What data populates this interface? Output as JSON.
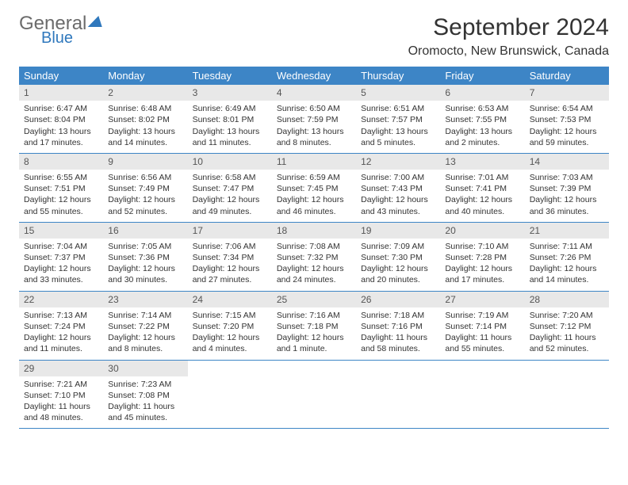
{
  "logo": {
    "line1": "General",
    "line2": "Blue"
  },
  "title": "September 2024",
  "location": "Oromocto, New Brunswick, Canada",
  "colors": {
    "header_bg": "#3d85c6",
    "header_text": "#ffffff",
    "daynum_bg": "#e8e8e8",
    "logo_gray": "#6b6b6b",
    "logo_blue": "#2f78bd",
    "row_border": "#3d85c6"
  },
  "day_names": [
    "Sunday",
    "Monday",
    "Tuesday",
    "Wednesday",
    "Thursday",
    "Friday",
    "Saturday"
  ],
  "weeks": [
    [
      {
        "n": "1",
        "sr": "Sunrise: 6:47 AM",
        "ss": "Sunset: 8:04 PM",
        "dl": "Daylight: 13 hours and 17 minutes."
      },
      {
        "n": "2",
        "sr": "Sunrise: 6:48 AM",
        "ss": "Sunset: 8:02 PM",
        "dl": "Daylight: 13 hours and 14 minutes."
      },
      {
        "n": "3",
        "sr": "Sunrise: 6:49 AM",
        "ss": "Sunset: 8:01 PM",
        "dl": "Daylight: 13 hours and 11 minutes."
      },
      {
        "n": "4",
        "sr": "Sunrise: 6:50 AM",
        "ss": "Sunset: 7:59 PM",
        "dl": "Daylight: 13 hours and 8 minutes."
      },
      {
        "n": "5",
        "sr": "Sunrise: 6:51 AM",
        "ss": "Sunset: 7:57 PM",
        "dl": "Daylight: 13 hours and 5 minutes."
      },
      {
        "n": "6",
        "sr": "Sunrise: 6:53 AM",
        "ss": "Sunset: 7:55 PM",
        "dl": "Daylight: 13 hours and 2 minutes."
      },
      {
        "n": "7",
        "sr": "Sunrise: 6:54 AM",
        "ss": "Sunset: 7:53 PM",
        "dl": "Daylight: 12 hours and 59 minutes."
      }
    ],
    [
      {
        "n": "8",
        "sr": "Sunrise: 6:55 AM",
        "ss": "Sunset: 7:51 PM",
        "dl": "Daylight: 12 hours and 55 minutes."
      },
      {
        "n": "9",
        "sr": "Sunrise: 6:56 AM",
        "ss": "Sunset: 7:49 PM",
        "dl": "Daylight: 12 hours and 52 minutes."
      },
      {
        "n": "10",
        "sr": "Sunrise: 6:58 AM",
        "ss": "Sunset: 7:47 PM",
        "dl": "Daylight: 12 hours and 49 minutes."
      },
      {
        "n": "11",
        "sr": "Sunrise: 6:59 AM",
        "ss": "Sunset: 7:45 PM",
        "dl": "Daylight: 12 hours and 46 minutes."
      },
      {
        "n": "12",
        "sr": "Sunrise: 7:00 AM",
        "ss": "Sunset: 7:43 PM",
        "dl": "Daylight: 12 hours and 43 minutes."
      },
      {
        "n": "13",
        "sr": "Sunrise: 7:01 AM",
        "ss": "Sunset: 7:41 PM",
        "dl": "Daylight: 12 hours and 40 minutes."
      },
      {
        "n": "14",
        "sr": "Sunrise: 7:03 AM",
        "ss": "Sunset: 7:39 PM",
        "dl": "Daylight: 12 hours and 36 minutes."
      }
    ],
    [
      {
        "n": "15",
        "sr": "Sunrise: 7:04 AM",
        "ss": "Sunset: 7:37 PM",
        "dl": "Daylight: 12 hours and 33 minutes."
      },
      {
        "n": "16",
        "sr": "Sunrise: 7:05 AM",
        "ss": "Sunset: 7:36 PM",
        "dl": "Daylight: 12 hours and 30 minutes."
      },
      {
        "n": "17",
        "sr": "Sunrise: 7:06 AM",
        "ss": "Sunset: 7:34 PM",
        "dl": "Daylight: 12 hours and 27 minutes."
      },
      {
        "n": "18",
        "sr": "Sunrise: 7:08 AM",
        "ss": "Sunset: 7:32 PM",
        "dl": "Daylight: 12 hours and 24 minutes."
      },
      {
        "n": "19",
        "sr": "Sunrise: 7:09 AM",
        "ss": "Sunset: 7:30 PM",
        "dl": "Daylight: 12 hours and 20 minutes."
      },
      {
        "n": "20",
        "sr": "Sunrise: 7:10 AM",
        "ss": "Sunset: 7:28 PM",
        "dl": "Daylight: 12 hours and 17 minutes."
      },
      {
        "n": "21",
        "sr": "Sunrise: 7:11 AM",
        "ss": "Sunset: 7:26 PM",
        "dl": "Daylight: 12 hours and 14 minutes."
      }
    ],
    [
      {
        "n": "22",
        "sr": "Sunrise: 7:13 AM",
        "ss": "Sunset: 7:24 PM",
        "dl": "Daylight: 12 hours and 11 minutes."
      },
      {
        "n": "23",
        "sr": "Sunrise: 7:14 AM",
        "ss": "Sunset: 7:22 PM",
        "dl": "Daylight: 12 hours and 8 minutes."
      },
      {
        "n": "24",
        "sr": "Sunrise: 7:15 AM",
        "ss": "Sunset: 7:20 PM",
        "dl": "Daylight: 12 hours and 4 minutes."
      },
      {
        "n": "25",
        "sr": "Sunrise: 7:16 AM",
        "ss": "Sunset: 7:18 PM",
        "dl": "Daylight: 12 hours and 1 minute."
      },
      {
        "n": "26",
        "sr": "Sunrise: 7:18 AM",
        "ss": "Sunset: 7:16 PM",
        "dl": "Daylight: 11 hours and 58 minutes."
      },
      {
        "n": "27",
        "sr": "Sunrise: 7:19 AM",
        "ss": "Sunset: 7:14 PM",
        "dl": "Daylight: 11 hours and 55 minutes."
      },
      {
        "n": "28",
        "sr": "Sunrise: 7:20 AM",
        "ss": "Sunset: 7:12 PM",
        "dl": "Daylight: 11 hours and 52 minutes."
      }
    ],
    [
      {
        "n": "29",
        "sr": "Sunrise: 7:21 AM",
        "ss": "Sunset: 7:10 PM",
        "dl": "Daylight: 11 hours and 48 minutes."
      },
      {
        "n": "30",
        "sr": "Sunrise: 7:23 AM",
        "ss": "Sunset: 7:08 PM",
        "dl": "Daylight: 11 hours and 45 minutes."
      },
      null,
      null,
      null,
      null,
      null
    ]
  ]
}
